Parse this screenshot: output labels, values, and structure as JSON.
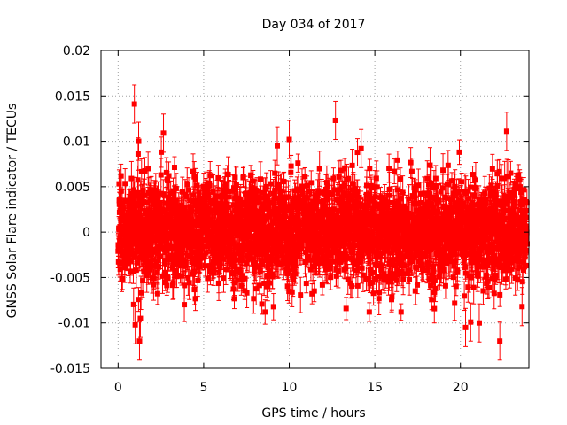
{
  "chart_data": {
    "type": "scatter",
    "title": "Day 034 of 2017",
    "xlabel": "GPS time / hours",
    "ylabel": "GNSS Solar Flare indicator / TECUs",
    "xlim": [
      -1,
      24
    ],
    "ylim": [
      -0.015,
      0.02
    ],
    "xticks": [
      0,
      5,
      10,
      15,
      20
    ],
    "xtick_labels": [
      "0",
      "5",
      "10",
      "15",
      "20"
    ],
    "yticks": [
      -0.015,
      -0.01,
      -0.005,
      0,
      0.005,
      0.01,
      0.015,
      0.02
    ],
    "ytick_labels": [
      "-0.015",
      "-0.01",
      "-0.005",
      "0",
      "0.005",
      "0.01",
      "0.015",
      "0.02"
    ],
    "grid": true,
    "marker": "square",
    "color": "#ff0000",
    "error_bars": true,
    "x_range": [
      0,
      23.9
    ],
    "sampling_interval_hours": 0.0083,
    "typical_spread": 0.0035,
    "typical_error": 0.0015,
    "notable_points": [
      {
        "x": 0.95,
        "y": 0.0141
      },
      {
        "x": 2.65,
        "y": 0.0109
      },
      {
        "x": 1.2,
        "y": 0.01
      },
      {
        "x": 10.0,
        "y": 0.0102
      },
      {
        "x": 12.7,
        "y": 0.0123
      },
      {
        "x": 22.7,
        "y": 0.0111
      },
      {
        "x": 1.0,
        "y": -0.0102
      },
      {
        "x": 1.25,
        "y": -0.012
      },
      {
        "x": 1.3,
        "y": -0.0095
      },
      {
        "x": 22.3,
        "y": -0.012
      },
      {
        "x": 20.6,
        "y": -0.0099
      },
      {
        "x": 20.3,
        "y": -0.0105
      },
      {
        "x": 21.1,
        "y": -0.01
      },
      {
        "x": 23.6,
        "y": -0.0082
      },
      {
        "x": 9.3,
        "y": 0.0095
      },
      {
        "x": 14.2,
        "y": 0.0092
      }
    ]
  }
}
